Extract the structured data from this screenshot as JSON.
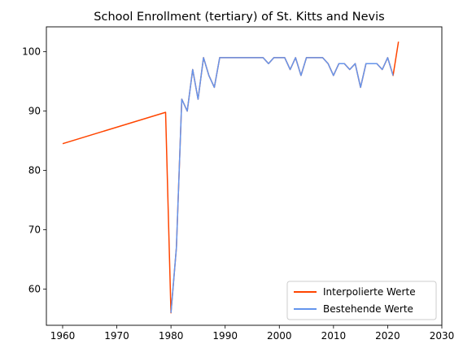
{
  "chart_data": {
    "type": "line",
    "title": "School Enrollment (tertiary) of St. Kitts and Nevis",
    "xlabel": "",
    "ylabel": "",
    "xlim": [
      1957,
      2030
    ],
    "ylim": [
      53.9,
      104.2
    ],
    "xticks": [
      1960,
      1970,
      1980,
      1990,
      2000,
      2010,
      2020,
      2030
    ],
    "yticks": [
      60,
      70,
      80,
      90,
      100
    ],
    "grid": false,
    "legend_position": "bottom-right",
    "series": [
      {
        "name": "Interpolierte Werte",
        "color": "#ff4500",
        "x": [
          1960,
          1979,
          1980,
          1981,
          1982,
          1983,
          1984,
          1985,
          1986,
          1987,
          1988,
          1989,
          1990,
          1991,
          1992,
          1993,
          1994,
          1995,
          1996,
          1997,
          1998,
          1999,
          2000,
          2001,
          2002,
          2003,
          2004,
          2005,
          2006,
          2007,
          2008,
          2009,
          2010,
          2011,
          2012,
          2013,
          2014,
          2015,
          2016,
          2017,
          2018,
          2019,
          2020,
          2021,
          2022
        ],
        "y": [
          84.5,
          89.8,
          56,
          67,
          92,
          90,
          97,
          92,
          99,
          96,
          94,
          99,
          99,
          99,
          99,
          99,
          99,
          99,
          99,
          99,
          98,
          99,
          99,
          99,
          97,
          99,
          96,
          99,
          99,
          99,
          99,
          98,
          96,
          98,
          98,
          97,
          98,
          94,
          98,
          98,
          98,
          97,
          99,
          96,
          101.7
        ]
      },
      {
        "name": "Bestehende Werte",
        "color": "#6495ed",
        "x": [
          1980,
          1981,
          1982,
          1983,
          1984,
          1985,
          1986,
          1987,
          1988,
          1989,
          1990,
          1991,
          1992,
          1993,
          1994,
          1995,
          1996,
          1997,
          1998,
          1999,
          2000,
          2001,
          2002,
          2003,
          2004,
          2005,
          2006,
          2007,
          2008,
          2009,
          2010,
          2011,
          2012,
          2013,
          2014,
          2015,
          2016,
          2017,
          2018,
          2019,
          2020,
          2021
        ],
        "y": [
          56,
          67,
          92,
          90,
          97,
          92,
          99,
          96,
          94,
          99,
          99,
          99,
          99,
          99,
          99,
          99,
          99,
          99,
          98,
          99,
          99,
          99,
          97,
          99,
          96,
          99,
          99,
          99,
          99,
          98,
          96,
          98,
          98,
          97,
          98,
          94,
          98,
          98,
          98,
          97,
          99,
          96
        ]
      }
    ]
  }
}
